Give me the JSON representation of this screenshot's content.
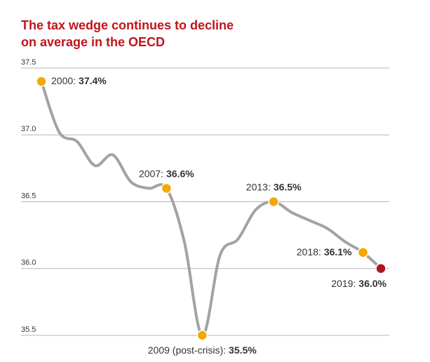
{
  "chart_data": {
    "type": "line",
    "title": [
      "The tax wedge continues to decline",
      "on average in the OECD"
    ],
    "x": [
      2000,
      2001,
      2002,
      2003,
      2004,
      2005,
      2006,
      2007,
      2008,
      2009,
      2010,
      2011,
      2012,
      2013,
      2014,
      2015,
      2016,
      2017,
      2018,
      2019
    ],
    "series": [
      {
        "color": "#a3a3a3",
        "values": [
          37.4,
          37.02,
          36.95,
          36.77,
          36.85,
          36.65,
          36.6,
          36.6,
          36.2,
          35.5,
          36.1,
          36.22,
          36.44,
          36.5,
          36.42,
          36.36,
          36.3,
          36.2,
          36.12,
          36.0
        ]
      }
    ],
    "xlim": [
      2000,
      2019
    ],
    "ylim": [
      35.5,
      37.5
    ],
    "yticks": [
      35.5,
      {
        "value": 36,
        "label": "36.0"
      },
      36.5,
      {
        "value": 37,
        "label": "37.0"
      },
      37.5
    ],
    "grid": true,
    "marker_color": "#f5a800",
    "last_marker_color": "#b0151b",
    "annotations": [
      {
        "x": 2000,
        "prefix": "2000:",
        "label": "37.4%"
      },
      {
        "x": 2007,
        "prefix": "2007:",
        "label": "36.6%"
      },
      {
        "x": 2009,
        "prefix": "2009 (post-crisis):",
        "label": "35.5%"
      },
      {
        "x": 2013,
        "prefix": "2013:",
        "label": "36.5%"
      },
      {
        "x": 2018,
        "prefix": "2018:",
        "label": "36.1%"
      },
      {
        "x": 2019,
        "prefix": "2019:",
        "label": "36.0%"
      }
    ]
  }
}
